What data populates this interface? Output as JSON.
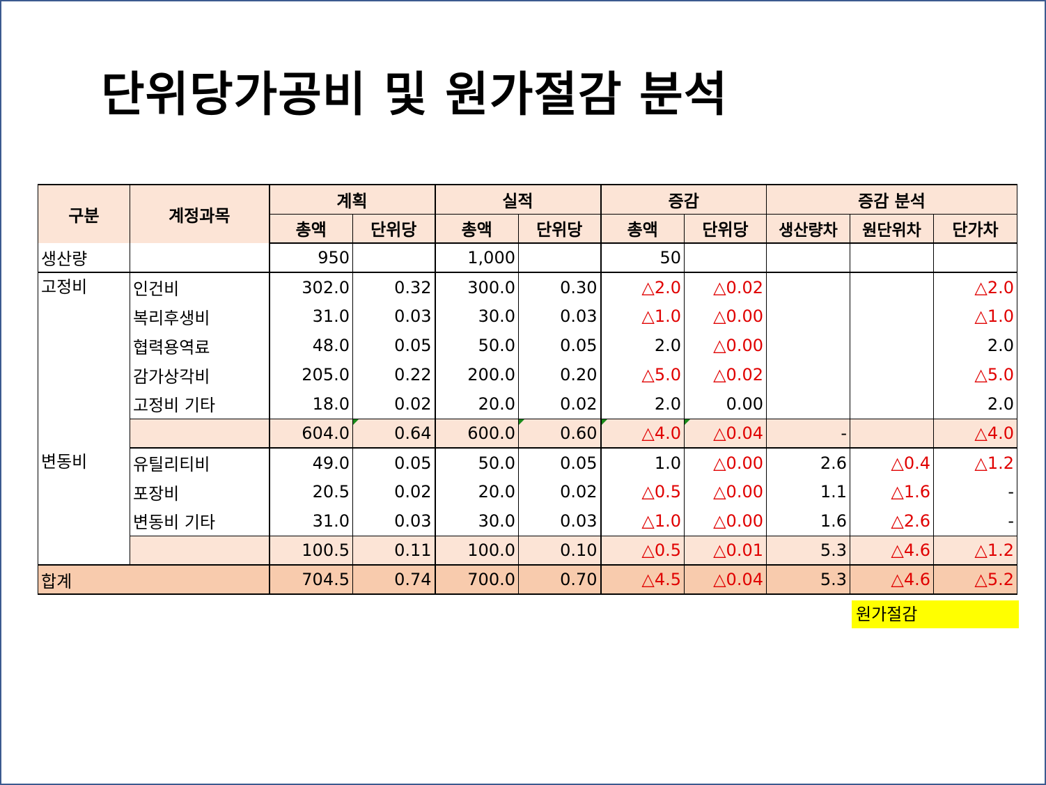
{
  "title": "단위당가공비 및 원가절감 분석",
  "header": {
    "group": "구분",
    "account": "계정과목",
    "plan": "계획",
    "actual": "실적",
    "change": "증감",
    "analysis": "증감 분석",
    "sub": [
      "총액",
      "단위당",
      "총액",
      "단위당",
      "총액",
      "단위당",
      "생산량차",
      "원단위차",
      "단가차"
    ]
  },
  "production": {
    "label": "생산량",
    "plan_total": "950",
    "actual_total": "1,000",
    "change_total": "50"
  },
  "fixed": {
    "label": "고정비",
    "rows": [
      {
        "name": "인건비",
        "v": [
          "302.0",
          "0.32",
          "300.0",
          "0.30",
          "△2.0",
          "△0.02",
          "",
          "",
          "△2.0"
        ]
      },
      {
        "name": "복리후생비",
        "v": [
          "31.0",
          "0.03",
          "30.0",
          "0.03",
          "△1.0",
          "△0.00",
          "",
          "",
          "△1.0"
        ]
      },
      {
        "name": "협력용역료",
        "v": [
          "48.0",
          "0.05",
          "50.0",
          "0.05",
          "2.0",
          "△0.00",
          "",
          "",
          "2.0"
        ]
      },
      {
        "name": "감가상각비",
        "v": [
          "205.0",
          "0.22",
          "200.0",
          "0.20",
          "△5.0",
          "△0.02",
          "",
          "",
          "△5.0"
        ]
      },
      {
        "name": "고정비 기타",
        "v": [
          "18.0",
          "0.02",
          "20.0",
          "0.02",
          "2.0",
          "0.00",
          "",
          "",
          "2.0"
        ]
      }
    ],
    "subtotal": [
      "604.0",
      "0.64",
      "600.0",
      "0.60",
      "△4.0",
      "△0.04",
      "-",
      "",
      "△4.0"
    ]
  },
  "variable": {
    "label": "변동비",
    "rows": [
      {
        "name": "유틸리티비",
        "v": [
          "49.0",
          "0.05",
          "50.0",
          "0.05",
          "1.0",
          "△0.00",
          "2.6",
          "△0.4",
          "△1.2"
        ]
      },
      {
        "name": "포장비",
        "v": [
          "20.5",
          "0.02",
          "20.0",
          "0.02",
          "△0.5",
          "△0.00",
          "1.1",
          "△1.6",
          "-"
        ]
      },
      {
        "name": "변동비 기타",
        "v": [
          "31.0",
          "0.03",
          "30.0",
          "0.03",
          "△1.0",
          "△0.00",
          "1.6",
          "△2.6",
          "-"
        ]
      }
    ],
    "subtotal": [
      "100.5",
      "0.11",
      "100.0",
      "0.10",
      "△0.5",
      "△0.01",
      "5.3",
      "△4.6",
      "△1.2"
    ]
  },
  "total": {
    "label": "합계",
    "v": [
      "704.5",
      "0.74",
      "700.0",
      "0.70",
      "△4.5",
      "△0.04",
      "5.3",
      "△4.6",
      "△5.2"
    ]
  },
  "note": "원가절감",
  "colors": {
    "header_bg": "#fce4d6",
    "total_bg": "#f8cbad",
    "negative": "#e00000",
    "highlight": "#ffff00",
    "frame": "#3b5a8f"
  }
}
